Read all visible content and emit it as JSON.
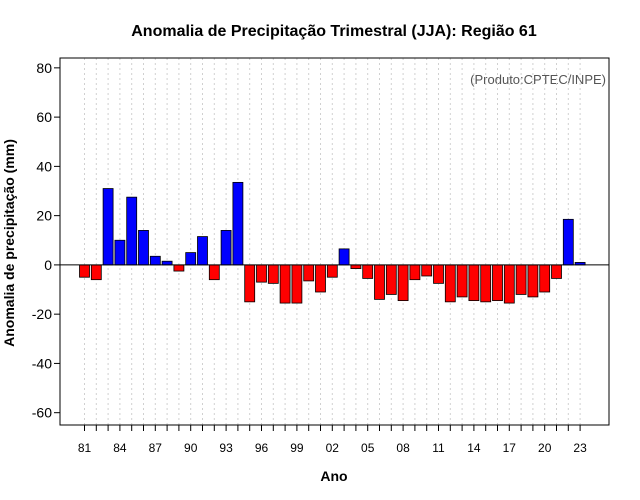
{
  "chart_data": {
    "type": "bar",
    "title": "Anomalia de Precipitação Trimestral (JJA): Região 61",
    "xlabel": "Ano",
    "ylabel": "Anomalia de precipitação (mm)",
    "annotation": "(Produto:CPTEC/INPE)",
    "ylim": [
      -65,
      84
    ],
    "yticks": [
      -60,
      -40,
      -20,
      0,
      20,
      40,
      60,
      80
    ],
    "categories": [
      "81",
      "82",
      "83",
      "84",
      "85",
      "86",
      "87",
      "88",
      "89",
      "90",
      "91",
      "92",
      "93",
      "94",
      "95",
      "96",
      "97",
      "98",
      "99",
      "00",
      "01",
      "02",
      "03",
      "04",
      "05",
      "06",
      "07",
      "08",
      "09",
      "10",
      "11",
      "12",
      "13",
      "14",
      "15",
      "16",
      "17",
      "18",
      "19",
      "20",
      "21",
      "22",
      "23"
    ],
    "xtick_labels": [
      "81",
      "84",
      "87",
      "90",
      "93",
      "96",
      "99",
      "02",
      "05",
      "08",
      "11",
      "14",
      "17",
      "20",
      "23"
    ],
    "values": [
      -5,
      -6,
      31,
      10,
      27.5,
      14,
      3.5,
      1.5,
      -2.5,
      5,
      11.5,
      -6,
      14,
      33.5,
      -15,
      -7,
      -7.5,
      -15.5,
      -15.5,
      -6.5,
      -11,
      -5,
      6.5,
      -1.5,
      -5.5,
      -14,
      -12,
      -14.5,
      -6,
      -4.5,
      -7.5,
      -15,
      -13,
      -14.5,
      -15,
      -14.5,
      -15.5,
      -12,
      -13,
      -11,
      -5.5,
      18.5,
      1
    ],
    "colors": {
      "positive": "#0000ff",
      "negative": "#ff0000",
      "bar_edge": "#000000"
    }
  }
}
